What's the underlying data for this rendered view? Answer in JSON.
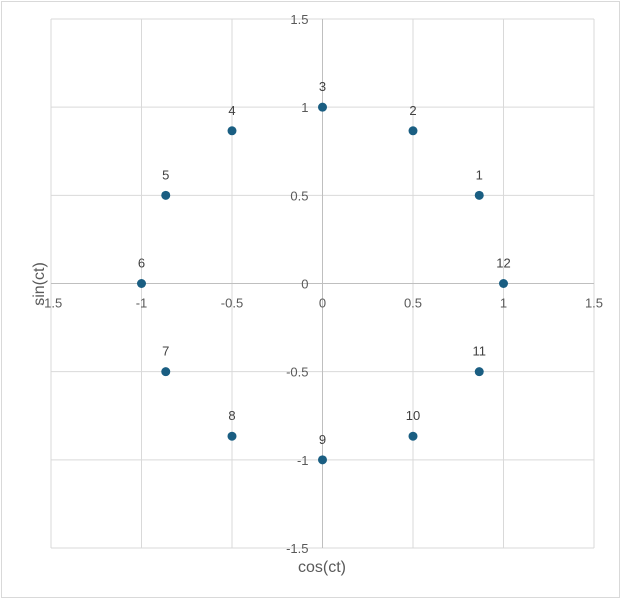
{
  "chart_data": {
    "type": "scatter",
    "title": "",
    "xlabel": "cos(ct)",
    "ylabel": "sin(ct)",
    "xlim": [
      -1.5,
      1.5
    ],
    "ylim": [
      -1.5,
      1.5
    ],
    "grid": true,
    "legend": "none",
    "x_ticks": [
      "-1.5",
      "-1",
      "-0.5",
      "0",
      "0.5",
      "1",
      "1.5"
    ],
    "y_ticks": [
      "1.5",
      "1",
      "0.5",
      "0",
      "-0.5",
      "-1",
      "-1.5"
    ],
    "marker_color": "#1a5e82",
    "series": [
      {
        "name": "points",
        "points": [
          {
            "label": "1",
            "x": 0.866,
            "y": 0.5
          },
          {
            "label": "2",
            "x": 0.5,
            "y": 0.866
          },
          {
            "label": "3",
            "x": 0.0,
            "y": 1.0
          },
          {
            "label": "4",
            "x": -0.5,
            "y": 0.866
          },
          {
            "label": "5",
            "x": -0.866,
            "y": 0.5
          },
          {
            "label": "6",
            "x": -1.0,
            "y": 0.0
          },
          {
            "label": "7",
            "x": -0.866,
            "y": -0.5
          },
          {
            "label": "8",
            "x": -0.5,
            "y": -0.866
          },
          {
            "label": "9",
            "x": 0.0,
            "y": -1.0
          },
          {
            "label": "10",
            "x": 0.5,
            "y": -0.866
          },
          {
            "label": "11",
            "x": 0.866,
            "y": -0.5
          },
          {
            "label": "12",
            "x": 1.0,
            "y": 0.0
          }
        ]
      }
    ]
  }
}
